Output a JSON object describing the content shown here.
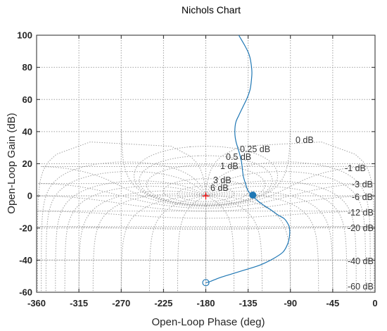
{
  "chart_data": {
    "type": "line",
    "title": "Nichols Chart",
    "xlabel": "Open-Loop Phase (deg)",
    "ylabel": "Open-Loop Gain (dB)",
    "xlim": [
      -360,
      0
    ],
    "ylim": [
      -60,
      100
    ],
    "xticks": [
      -360,
      -315,
      -270,
      -225,
      -180,
      -135,
      -90,
      -45,
      0
    ],
    "yticks": [
      -60,
      -40,
      -20,
      0,
      20,
      40,
      60,
      80,
      100
    ],
    "grid": true,
    "series": [
      {
        "color": "#1f77b4",
        "x": [
          -145,
          -138,
          -134,
          -132,
          -131,
          -131.5,
          -133,
          -136,
          -140,
          -145,
          -148,
          -149,
          -149,
          -148,
          -146,
          -144,
          -142,
          -141,
          -140,
          -138,
          -135,
          -130,
          -125,
          -118,
          -110,
          -103,
          -97,
          -93,
          -91,
          -91,
          -93,
          -98,
          -108,
          -122,
          -138,
          -152,
          -163,
          -170,
          -175,
          -178,
          -180
        ],
        "y": [
          100,
          93,
          88,
          83,
          77,
          72,
          66,
          61,
          56,
          50,
          46,
          42,
          38,
          34,
          30,
          26,
          21,
          16,
          12,
          8,
          3,
          0,
          -3,
          -6,
          -9,
          -12,
          -14,
          -17,
          -20,
          -25,
          -30,
          -35,
          -39,
          -43,
          -46,
          -48.5,
          -50.5,
          -52,
          -53.2,
          -53.8,
          -54
        ]
      }
    ],
    "markers": [
      {
        "x": -180,
        "y": 0,
        "shape": "plus",
        "color": "#ff0000"
      },
      {
        "x": -130,
        "y": 0.5,
        "shape": "filled-circle",
        "color": "#1f77b4"
      },
      {
        "x": -180,
        "y": -54,
        "shape": "open-circle",
        "color": "#1f77b4"
      }
    ],
    "grid_labels": [
      {
        "text": "0 dB"
      },
      {
        "text": "0.25 dB"
      },
      {
        "text": "0.5 dB"
      },
      {
        "text": "1 dB"
      },
      {
        "text": "3 dB"
      },
      {
        "text": "6 dB"
      },
      {
        "text": "-1 dB"
      },
      {
        "text": "-3 dB"
      },
      {
        "text": "-6 dB"
      },
      {
        "text": "-12 dB"
      },
      {
        "text": "-20 dB"
      },
      {
        "text": "-40 dB"
      },
      {
        "text": "-60 dB"
      }
    ]
  }
}
